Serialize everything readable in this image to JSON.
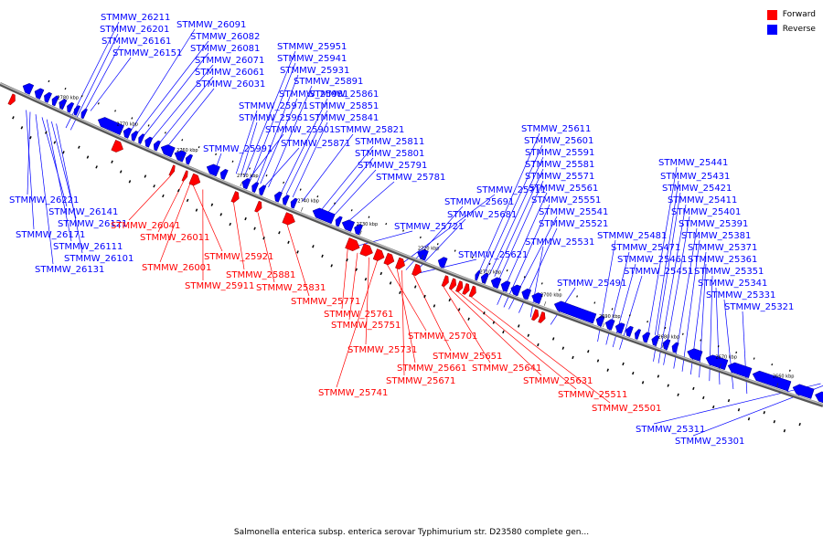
{
  "caption": "Salmonella enterica subsp. enterica serovar Typhimurium str. D23580 complete gen...",
  "legend": [
    {
      "label": "Forward",
      "color": "#ff0000"
    },
    {
      "label": "Reverse",
      "color": "#0000ff"
    }
  ],
  "colors": {
    "forward": "#ff0000",
    "reverse": "#0000ff",
    "backbone": "#888888"
  },
  "ticks": [
    "2780 kbp",
    "2770 kbp",
    "2760 kbp",
    "2750 kbp",
    "2740 kbp",
    "2730 kbp",
    "2720 kbp",
    "2710 kbp",
    "2700 kbp",
    "2690 kbp",
    "2680 kbp",
    "2670 kbp",
    "2660 kbp"
  ],
  "reverse_labels": [
    "STMMW_26211",
    "STMMW_26201",
    "STMMW_26161",
    "STMMW_26151",
    "STMMW_26091",
    "STMMW_26082",
    "STMMW_26081",
    "STMMW_26071",
    "STMMW_26061",
    "STMMW_26031",
    "STMMW_25951",
    "STMMW_25941",
    "STMMW_25931",
    "STMMW_25891",
    "STMMW_25981",
    "STMMW_25861",
    "STMMW_25971",
    "STMMW_25851",
    "STMMW_25961",
    "STMMW_25841",
    "STMMW_25901",
    "STMMW_25821",
    "STMMW_25991",
    "STMMW_25871",
    "STMMW_25811",
    "STMMW_25801",
    "STMMW_25791",
    "STMMW_25781",
    "STMMW_25611",
    "STMMW_25601",
    "STMMW_25591",
    "STMMW_25581",
    "STMMW_25571",
    "STMMW_25561",
    "STMMW_25551",
    "STMMW_25541",
    "STMMW_25521",
    "STMMW_25531",
    "STMMW_25711",
    "STMMW_25691",
    "STMMW_25681",
    "STMMW_25721",
    "STMMW_25621",
    "STMMW_25481",
    "STMMW_25471",
    "STMMW_25461",
    "STMMW_25451",
    "STMMW_25491",
    "STMMW_25441",
    "STMMW_25431",
    "STMMW_25421",
    "STMMW_25411",
    "STMMW_25401",
    "STMMW_25391",
    "STMMW_25381",
    "STMMW_25371",
    "STMMW_25361",
    "STMMW_25351",
    "STMMW_25341",
    "STMMW_25331",
    "STMMW_25321",
    "STMMW_26221",
    "STMMW_26141",
    "STMMW_26121",
    "STMMW_26171",
    "STMMW_26111",
    "STMMW_26101",
    "STMMW_26131",
    "STMMW_25311",
    "STMMW_25301"
  ],
  "forward_labels": [
    "STMMW_26041",
    "STMMW_26011",
    "STMMW_26001",
    "STMMW_25921",
    "STMMW_25911",
    "STMMW_25881",
    "STMMW_25831",
    "STMMW_25771",
    "STMMW_25761",
    "STMMW_25751",
    "STMMW_25731",
    "STMMW_25741",
    "STMMW_25701",
    "STMMW_25661",
    "STMMW_25671",
    "STMMW_25651",
    "STMMW_25641",
    "STMMW_25631",
    "STMMW_25511",
    "STMMW_25501"
  ]
}
